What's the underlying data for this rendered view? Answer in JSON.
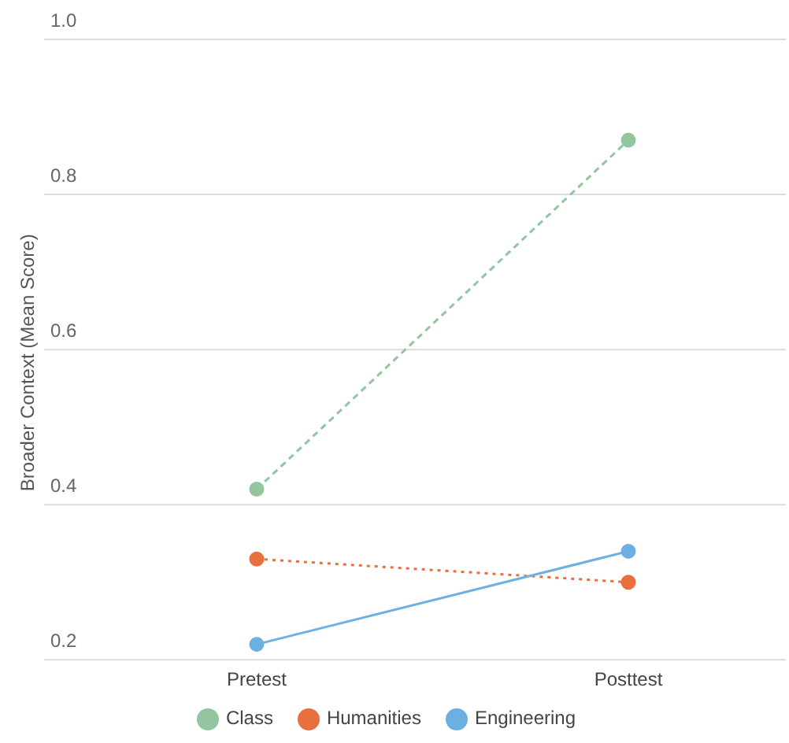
{
  "chart_data": {
    "type": "line",
    "ylabel": "Broader Context (Mean Score)",
    "categories": [
      "Pretest",
      "Posttest"
    ],
    "series": [
      {
        "name": "Class",
        "color": "#93c5a1",
        "values": [
          0.42,
          0.87
        ],
        "line_style": "dashed"
      },
      {
        "name": "Humanities",
        "color": "#ea6f3f",
        "values": [
          0.33,
          0.3
        ],
        "line_style": "dotted"
      },
      {
        "name": "Engineering",
        "color": "#6cb0e2",
        "values": [
          0.22,
          0.34
        ],
        "line_style": "solid"
      }
    ],
    "ylim": [
      0.2,
      1.0
    ],
    "yticks": [
      0.2,
      0.4,
      0.6,
      0.8,
      {
        "value": 1,
        "label": "1.0"
      }
    ],
    "grid": "y",
    "legend": "bottom",
    "marker": "circle"
  }
}
